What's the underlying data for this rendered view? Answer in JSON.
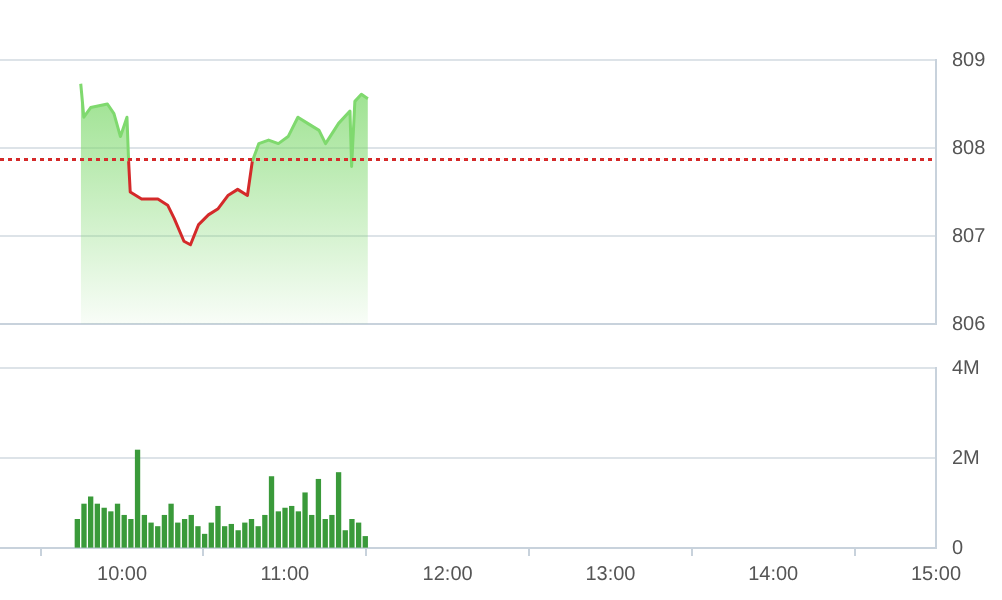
{
  "chart_data": [
    {
      "type": "area",
      "x": [
        9.746,
        9.765,
        9.807,
        9.91,
        9.95,
        9.99,
        10.03,
        10.04,
        10.05,
        10.12,
        10.22,
        10.28,
        10.32,
        10.38,
        10.42,
        10.47,
        10.53,
        10.59,
        10.65,
        10.71,
        10.77,
        10.8,
        10.84,
        10.9,
        10.96,
        11.02,
        11.08,
        11.14,
        11.21,
        11.25,
        11.33,
        11.4,
        11.41,
        11.43,
        11.47,
        11.51
      ],
      "values": [
        808.73,
        808.35,
        808.46,
        808.5,
        808.39,
        808.13,
        808.35,
        807.85,
        807.5,
        807.42,
        807.42,
        807.35,
        807.2,
        806.94,
        806.9,
        807.13,
        807.24,
        807.31,
        807.46,
        807.53,
        807.46,
        807.85,
        808.05,
        808.09,
        808.05,
        808.13,
        808.35,
        808.28,
        808.2,
        808.05,
        808.28,
        808.42,
        807.79,
        808.53,
        808.61,
        808.56
      ],
      "color": "#7fd96e",
      "xlim": [
        9.25,
        15
      ],
      "ylim": [
        806,
        809
      ],
      "yticks": [
        806,
        807,
        808,
        809
      ],
      "grid": "y",
      "tick_labels": "y",
      "ref_lines": [
        {
          "axis": "y",
          "value": 807.87,
          "color": "#d42a2a",
          "line_style": "dotted"
        }
      ]
    },
    {
      "type": "bar",
      "x": [
        9.725,
        9.766,
        9.807,
        9.848,
        9.89,
        9.931,
        9.972,
        10.013,
        10.054,
        10.095,
        10.137,
        10.178,
        10.219,
        10.26,
        10.301,
        10.342,
        10.384,
        10.425,
        10.466,
        10.507,
        10.548,
        10.589,
        10.63,
        10.671,
        10.713,
        10.754,
        10.795,
        10.836,
        10.877,
        10.918,
        10.96,
        11.001,
        11.042,
        11.083,
        11.124,
        11.165,
        11.206,
        11.248,
        11.289,
        11.33,
        11.371,
        11.412,
        11.453,
        11.494
      ],
      "values": [
        630000,
        970000,
        1130000,
        970000,
        880000,
        800000,
        970000,
        720000,
        630000,
        2170000,
        720000,
        550000,
        470000,
        720000,
        970000,
        550000,
        630000,
        720000,
        470000,
        300000,
        550000,
        920000,
        470000,
        520000,
        380000,
        550000,
        630000,
        470000,
        720000,
        1580000,
        800000,
        880000,
        920000,
        800000,
        1220000,
        720000,
        1520000,
        630000,
        720000,
        1670000,
        380000,
        630000,
        550000,
        250000
      ],
      "color": "#3a9a3a",
      "xlim": [
        9.25,
        15
      ],
      "xticks": [
        {
          "value": 10,
          "label": "10:00"
        },
        {
          "value": 11,
          "label": "11:00"
        },
        {
          "value": 12,
          "label": "12:00"
        },
        {
          "value": 13,
          "label": "13:00"
        },
        {
          "value": 14,
          "label": "14:00"
        },
        {
          "value": 15,
          "label": "15:00"
        }
      ],
      "ylim": [
        0,
        4000000
      ],
      "yticks": [
        {
          "value": 0,
          "label": "0"
        },
        {
          "value": 2000000,
          "label": "2M"
        },
        {
          "value": 4000000,
          "label": "4M"
        }
      ],
      "grid": "y"
    }
  ]
}
